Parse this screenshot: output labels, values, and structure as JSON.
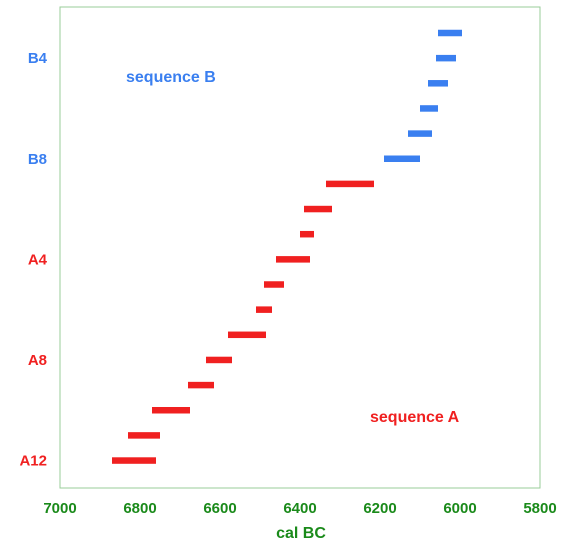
{
  "chart_data": {
    "type": "range-bar",
    "title": "",
    "xlabel": "cal BC",
    "ylabel": "",
    "xlim": [
      7000,
      5800
    ],
    "x_reversed": true,
    "xticks": [
      7000,
      6800,
      6600,
      6400,
      6200,
      6000,
      5800
    ],
    "grid": false,
    "row_labels": [
      {
        "label": "B4",
        "row": 1,
        "series": "sequence B"
      },
      {
        "label": "B8",
        "row": 5,
        "series": "sequence B"
      },
      {
        "label": "A4",
        "row": 9,
        "series": "sequence A"
      },
      {
        "label": "A8",
        "row": 13,
        "series": "sequence A"
      },
      {
        "label": "A12",
        "row": 17,
        "series": "sequence A"
      }
    ],
    "series": [
      {
        "name": "sequence B",
        "color": "#3a7ff0",
        "ranges": [
          {
            "row": 0,
            "start": 6055,
            "end": 5995
          },
          {
            "row": 1,
            "start": 6060,
            "end": 6010
          },
          {
            "row": 2,
            "start": 6080,
            "end": 6030
          },
          {
            "row": 3,
            "start": 6100,
            "end": 6055
          },
          {
            "row": 4,
            "start": 6130,
            "end": 6070
          },
          {
            "row": 5,
            "start": 6190,
            "end": 6100
          }
        ]
      },
      {
        "name": "sequence A",
        "color": "#f02020",
        "ranges": [
          {
            "row": 6,
            "start": 6335,
            "end": 6215
          },
          {
            "row": 7,
            "start": 6390,
            "end": 6320
          },
          {
            "row": 8,
            "start": 6400,
            "end": 6365
          },
          {
            "row": 9,
            "start": 6460,
            "end": 6375
          },
          {
            "row": 10,
            "start": 6490,
            "end": 6440
          },
          {
            "row": 11,
            "start": 6510,
            "end": 6470
          },
          {
            "row": 12,
            "start": 6580,
            "end": 6485
          },
          {
            "row": 13,
            "start": 6635,
            "end": 6570
          },
          {
            "row": 14,
            "start": 6680,
            "end": 6615
          },
          {
            "row": 15,
            "start": 6770,
            "end": 6675
          },
          {
            "row": 16,
            "start": 6830,
            "end": 6750
          },
          {
            "row": 17,
            "start": 6870,
            "end": 6760
          }
        ]
      }
    ],
    "annotations": [
      {
        "text": "sequence B",
        "series": "sequence B",
        "color": "#3a7ff0"
      },
      {
        "text": "sequence A",
        "series": "sequence A",
        "color": "#f02020"
      }
    ],
    "colors": {
      "frame": "#99cc99",
      "tick_label": "#1a8a1a",
      "axis_title": "#1a8a1a"
    }
  }
}
